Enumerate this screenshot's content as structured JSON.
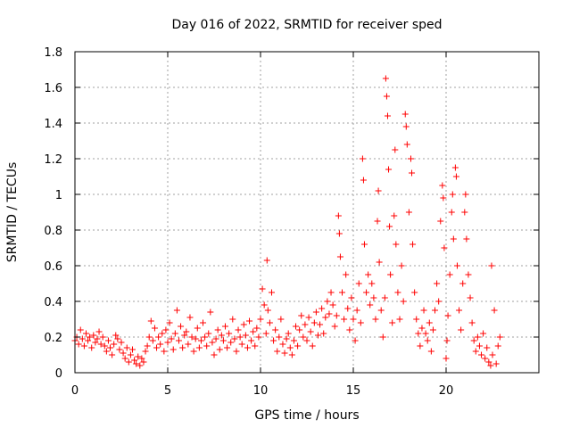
{
  "chart_data": {
    "type": "scatter",
    "title": "Day 016 of 2022, SRMTID for receiver sped",
    "xlabel": "GPS time / hours",
    "ylabel": "SRMTID / TECUs",
    "xlim": [
      0,
      25
    ],
    "ylim": [
      0,
      1.8
    ],
    "x_ticks": [
      0,
      5,
      10,
      15,
      20
    ],
    "x_tick_labels": [
      "0",
      "5",
      "10",
      "15",
      "20"
    ],
    "y_ticks": [
      0,
      0.2,
      0.4,
      0.6,
      0.8,
      1.0,
      1.2,
      1.4,
      1.6,
      1.8
    ],
    "y_tick_labels": [
      "0",
      "0.2",
      "0.4",
      "0.6",
      "0.8",
      "1",
      "1.2",
      "1.4",
      "1.6",
      "1.8"
    ],
    "grid": true,
    "marker": "plus",
    "series": [
      {
        "name": "SRMTID",
        "color": "#ff0000",
        "points": [
          [
            0.0,
            0.18
          ],
          [
            0.1,
            0.2
          ],
          [
            0.2,
            0.16
          ],
          [
            0.3,
            0.24
          ],
          [
            0.4,
            0.19
          ],
          [
            0.5,
            0.15
          ],
          [
            0.6,
            0.22
          ],
          [
            0.7,
            0.18
          ],
          [
            0.8,
            0.2
          ],
          [
            0.9,
            0.14
          ],
          [
            1.0,
            0.21
          ],
          [
            1.1,
            0.17
          ],
          [
            1.2,
            0.19
          ],
          [
            1.3,
            0.23
          ],
          [
            1.4,
            0.16
          ],
          [
            1.5,
            0.2
          ],
          [
            1.6,
            0.15
          ],
          [
            1.7,
            0.12
          ],
          [
            1.8,
            0.18
          ],
          [
            1.9,
            0.14
          ],
          [
            2.0,
            0.1
          ],
          [
            2.1,
            0.16
          ],
          [
            2.2,
            0.21
          ],
          [
            2.3,
            0.19
          ],
          [
            2.4,
            0.13
          ],
          [
            2.5,
            0.17
          ],
          [
            2.6,
            0.11
          ],
          [
            2.7,
            0.08
          ],
          [
            2.8,
            0.14
          ],
          [
            2.9,
            0.06
          ],
          [
            3.0,
            0.1
          ],
          [
            3.1,
            0.13
          ],
          [
            3.2,
            0.07
          ],
          [
            3.3,
            0.05
          ],
          [
            3.4,
            0.09
          ],
          [
            3.5,
            0.04
          ],
          [
            3.6,
            0.08
          ],
          [
            3.7,
            0.06
          ],
          [
            3.8,
            0.12
          ],
          [
            3.9,
            0.15
          ],
          [
            4.0,
            0.2
          ],
          [
            4.1,
            0.29
          ],
          [
            4.2,
            0.18
          ],
          [
            4.3,
            0.25
          ],
          [
            4.4,
            0.14
          ],
          [
            4.5,
            0.2
          ],
          [
            4.6,
            0.16
          ],
          [
            4.7,
            0.22
          ],
          [
            4.8,
            0.12
          ],
          [
            4.9,
            0.24
          ],
          [
            5.0,
            0.17
          ],
          [
            5.1,
            0.28
          ],
          [
            5.2,
            0.19
          ],
          [
            5.3,
            0.13
          ],
          [
            5.4,
            0.22
          ],
          [
            5.5,
            0.35
          ],
          [
            5.6,
            0.18
          ],
          [
            5.7,
            0.26
          ],
          [
            5.8,
            0.14
          ],
          [
            5.9,
            0.21
          ],
          [
            6.0,
            0.23
          ],
          [
            6.1,
            0.16
          ],
          [
            6.2,
            0.31
          ],
          [
            6.3,
            0.2
          ],
          [
            6.4,
            0.12
          ],
          [
            6.5,
            0.19
          ],
          [
            6.6,
            0.25
          ],
          [
            6.7,
            0.14
          ],
          [
            6.8,
            0.18
          ],
          [
            6.9,
            0.28
          ],
          [
            7.0,
            0.2
          ],
          [
            7.1,
            0.15
          ],
          [
            7.2,
            0.22
          ],
          [
            7.3,
            0.34
          ],
          [
            7.4,
            0.17
          ],
          [
            7.5,
            0.1
          ],
          [
            7.6,
            0.19
          ],
          [
            7.7,
            0.24
          ],
          [
            7.8,
            0.13
          ],
          [
            7.9,
            0.21
          ],
          [
            8.0,
            0.18
          ],
          [
            8.1,
            0.26
          ],
          [
            8.2,
            0.14
          ],
          [
            8.3,
            0.22
          ],
          [
            8.4,
            0.17
          ],
          [
            8.5,
            0.3
          ],
          [
            8.6,
            0.19
          ],
          [
            8.7,
            0.12
          ],
          [
            8.8,
            0.24
          ],
          [
            8.9,
            0.2
          ],
          [
            9.0,
            0.16
          ],
          [
            9.1,
            0.27
          ],
          [
            9.2,
            0.21
          ],
          [
            9.3,
            0.14
          ],
          [
            9.4,
            0.29
          ],
          [
            9.5,
            0.18
          ],
          [
            9.6,
            0.23
          ],
          [
            9.7,
            0.15
          ],
          [
            9.8,
            0.25
          ],
          [
            9.9,
            0.2
          ],
          [
            10.0,
            0.3
          ],
          [
            10.1,
            0.47
          ],
          [
            10.2,
            0.38
          ],
          [
            10.3,
            0.22
          ],
          [
            10.35,
            0.63
          ],
          [
            10.4,
            0.35
          ],
          [
            10.5,
            0.28
          ],
          [
            10.6,
            0.45
          ],
          [
            10.7,
            0.18
          ],
          [
            10.8,
            0.24
          ],
          [
            10.9,
            0.12
          ],
          [
            11.0,
            0.2
          ],
          [
            11.1,
            0.3
          ],
          [
            11.2,
            0.16
          ],
          [
            11.3,
            0.11
          ],
          [
            11.4,
            0.19
          ],
          [
            11.5,
            0.22
          ],
          [
            11.6,
            0.14
          ],
          [
            11.7,
            0.1
          ],
          [
            11.8,
            0.18
          ],
          [
            11.9,
            0.26
          ],
          [
            12.0,
            0.15
          ],
          [
            12.1,
            0.24
          ],
          [
            12.2,
            0.32
          ],
          [
            12.3,
            0.2
          ],
          [
            12.4,
            0.27
          ],
          [
            12.5,
            0.18
          ],
          [
            12.6,
            0.31
          ],
          [
            12.7,
            0.23
          ],
          [
            12.8,
            0.15
          ],
          [
            12.9,
            0.28
          ],
          [
            13.0,
            0.34
          ],
          [
            13.1,
            0.21
          ],
          [
            13.2,
            0.27
          ],
          [
            13.3,
            0.36
          ],
          [
            13.4,
            0.22
          ],
          [
            13.5,
            0.31
          ],
          [
            13.6,
            0.4
          ],
          [
            13.7,
            0.33
          ],
          [
            13.8,
            0.45
          ],
          [
            13.9,
            0.38
          ],
          [
            14.0,
            0.26
          ],
          [
            14.1,
            0.32
          ],
          [
            14.2,
            0.88
          ],
          [
            14.25,
            0.78
          ],
          [
            14.3,
            0.65
          ],
          [
            14.4,
            0.45
          ],
          [
            14.5,
            0.3
          ],
          [
            14.6,
            0.55
          ],
          [
            14.7,
            0.36
          ],
          [
            14.8,
            0.24
          ],
          [
            14.9,
            0.42
          ],
          [
            15.0,
            0.3
          ],
          [
            15.1,
            0.18
          ],
          [
            15.2,
            0.35
          ],
          [
            15.3,
            0.5
          ],
          [
            15.4,
            0.28
          ],
          [
            15.5,
            1.2
          ],
          [
            15.55,
            1.08
          ],
          [
            15.6,
            0.72
          ],
          [
            15.7,
            0.45
          ],
          [
            15.8,
            0.55
          ],
          [
            15.9,
            0.38
          ],
          [
            16.0,
            0.5
          ],
          [
            16.1,
            0.42
          ],
          [
            16.2,
            0.3
          ],
          [
            16.3,
            0.85
          ],
          [
            16.35,
            1.02
          ],
          [
            16.4,
            0.62
          ],
          [
            16.5,
            0.35
          ],
          [
            16.6,
            0.2
          ],
          [
            16.7,
            0.42
          ],
          [
            16.75,
            1.65
          ],
          [
            16.8,
            1.55
          ],
          [
            16.85,
            1.44
          ],
          [
            16.9,
            1.14
          ],
          [
            16.95,
            0.82
          ],
          [
            17.0,
            0.55
          ],
          [
            17.1,
            0.28
          ],
          [
            17.2,
            0.88
          ],
          [
            17.25,
            1.25
          ],
          [
            17.3,
            0.72
          ],
          [
            17.4,
            0.45
          ],
          [
            17.5,
            0.3
          ],
          [
            17.6,
            0.6
          ],
          [
            17.7,
            0.4
          ],
          [
            17.8,
            1.45
          ],
          [
            17.85,
            1.38
          ],
          [
            17.9,
            1.28
          ],
          [
            18.0,
            0.9
          ],
          [
            18.1,
            1.2
          ],
          [
            18.15,
            1.12
          ],
          [
            18.2,
            0.72
          ],
          [
            18.3,
            0.45
          ],
          [
            18.4,
            0.3
          ],
          [
            18.5,
            0.22
          ],
          [
            18.6,
            0.15
          ],
          [
            18.7,
            0.25
          ],
          [
            18.8,
            0.35
          ],
          [
            18.9,
            0.22
          ],
          [
            19.0,
            0.18
          ],
          [
            19.1,
            0.28
          ],
          [
            19.2,
            0.12
          ],
          [
            19.3,
            0.24
          ],
          [
            19.4,
            0.35
          ],
          [
            19.5,
            0.5
          ],
          [
            19.6,
            0.4
          ],
          [
            19.7,
            0.85
          ],
          [
            19.8,
            1.05
          ],
          [
            19.85,
            0.98
          ],
          [
            19.9,
            0.7
          ],
          [
            20.0,
            0.08
          ],
          [
            20.05,
            0.18
          ],
          [
            20.1,
            0.32
          ],
          [
            20.2,
            0.55
          ],
          [
            20.3,
            0.9
          ],
          [
            20.35,
            1.0
          ],
          [
            20.4,
            0.75
          ],
          [
            20.5,
            1.15
          ],
          [
            20.55,
            1.1
          ],
          [
            20.6,
            0.6
          ],
          [
            20.7,
            0.35
          ],
          [
            20.8,
            0.24
          ],
          [
            20.9,
            0.5
          ],
          [
            21.0,
            0.9
          ],
          [
            21.05,
            1.0
          ],
          [
            21.1,
            0.75
          ],
          [
            21.2,
            0.55
          ],
          [
            21.3,
            0.42
          ],
          [
            21.4,
            0.28
          ],
          [
            21.5,
            0.18
          ],
          [
            21.6,
            0.12
          ],
          [
            21.7,
            0.2
          ],
          [
            21.8,
            0.15
          ],
          [
            21.9,
            0.1
          ],
          [
            22.0,
            0.22
          ],
          [
            22.1,
            0.08
          ],
          [
            22.2,
            0.14
          ],
          [
            22.3,
            0.06
          ],
          [
            22.4,
            0.04
          ],
          [
            22.45,
            0.6
          ],
          [
            22.5,
            0.1
          ],
          [
            22.6,
            0.35
          ],
          [
            22.7,
            0.05
          ],
          [
            22.8,
            0.15
          ],
          [
            22.9,
            0.2
          ]
        ]
      }
    ]
  }
}
